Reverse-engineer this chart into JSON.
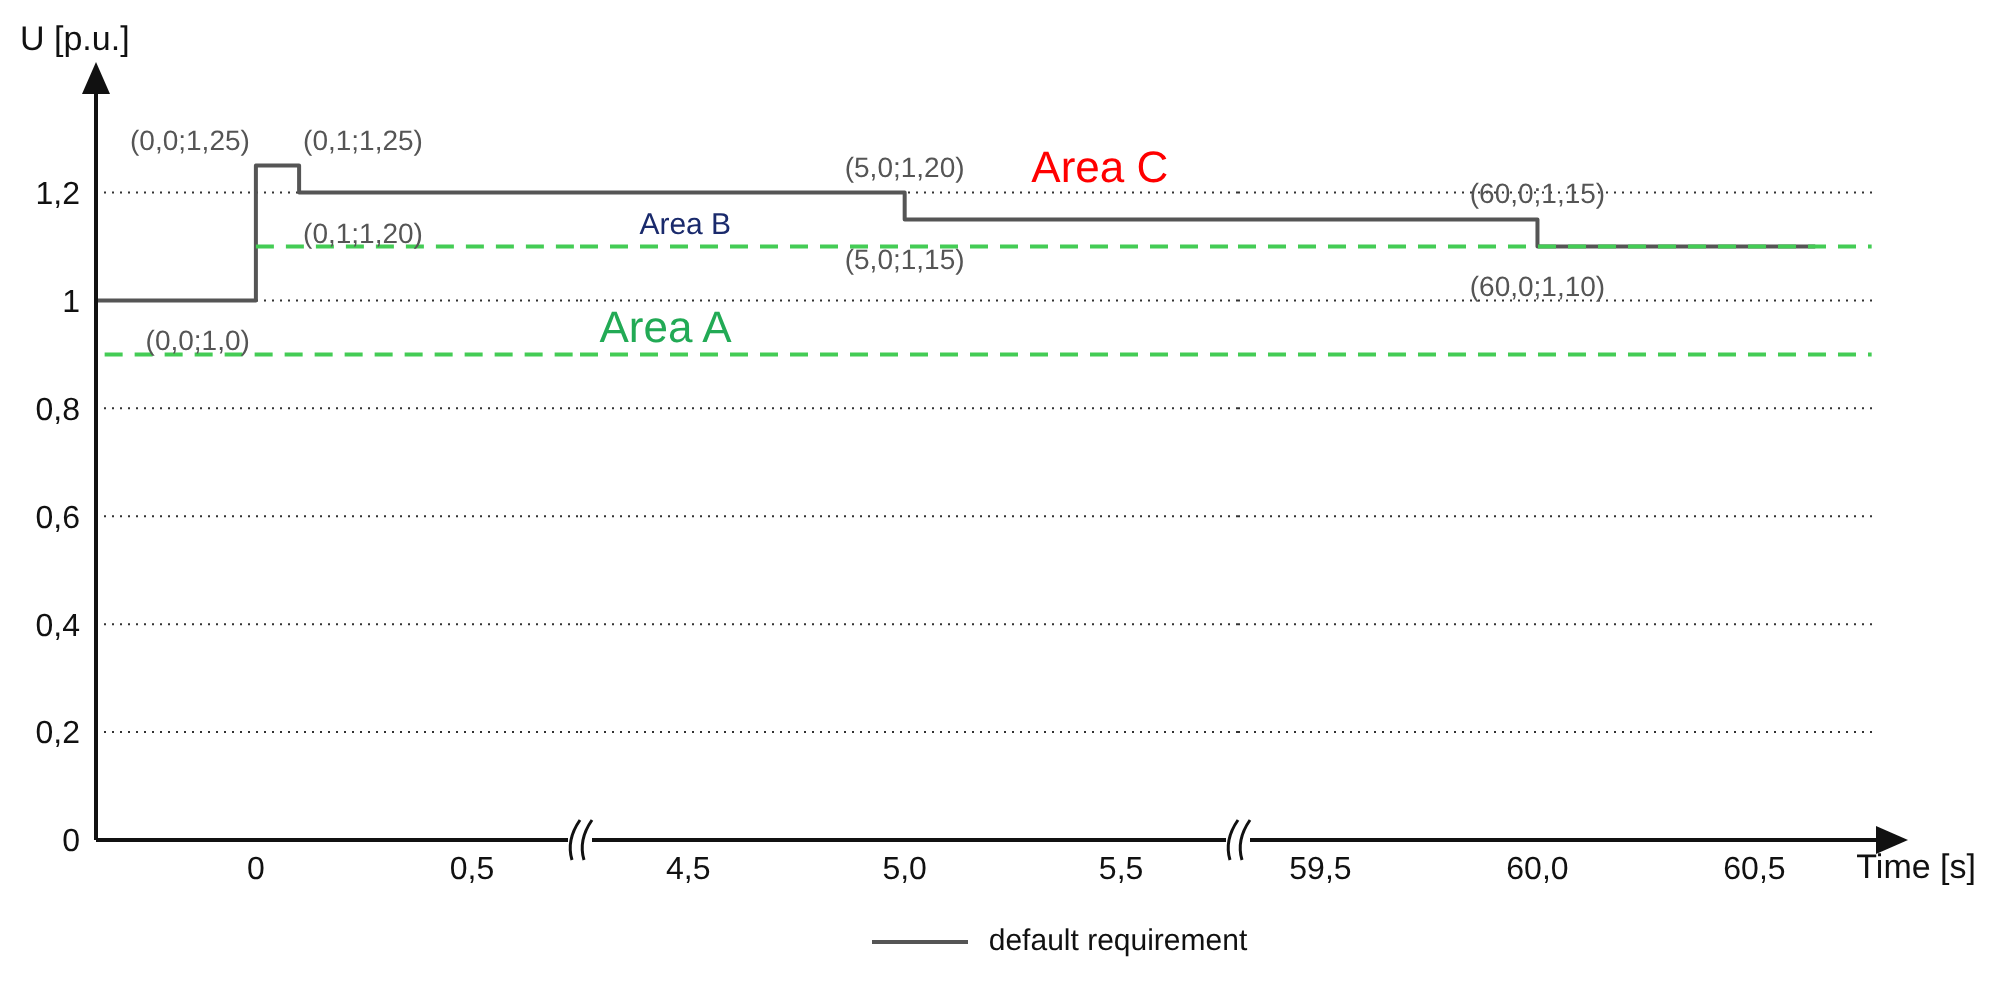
{
  "chart_data": [
    {
      "type": "step",
      "ylabel": "U [p.u.]",
      "xlim": [
        -0.37,
        0.75
      ],
      "xticks": [
        0,
        {
          "value": 0.5,
          "label": "0,5"
        }
      ],
      "ylim": [
        0,
        1.39
      ],
      "yticks": [
        0,
        {
          "value": 0.2,
          "label": "0,2"
        },
        {
          "value": 0.4,
          "label": "0,4"
        },
        {
          "value": 0.6,
          "label": "0,6"
        },
        {
          "value": 0.8,
          "label": "0,8"
        },
        1,
        {
          "value": 1.2,
          "label": "1,2"
        }
      ],
      "grid": "y",
      "legend": "bottom",
      "series": [
        {
          "name": "default requirement",
          "color": "#555555",
          "x": [
            -0.37,
            0,
            0.1,
            0.75
          ],
          "values": [
            1.0,
            1.25,
            1.2,
            1.2
          ]
        },
        {
          "color": "#44cc55",
          "line_style": "dashed",
          "x": [
            0,
            0.75
          ],
          "values": [
            1.1,
            1.1
          ]
        },
        {
          "color": "#44cc55",
          "line_style": "dashed",
          "x": [
            -0.35,
            0.75
          ],
          "values": [
            0.9,
            0.9
          ]
        }
      ],
      "annotations": [
        {
          "text": "(0,0;1,25)",
          "x": 0,
          "y": 1.25
        },
        {
          "text": "(0,1;1,25)",
          "x": 0.1,
          "y": 1.25
        },
        {
          "text": "(0,1;1,20)",
          "x": 0.1,
          "y": 1.2
        },
        {
          "text": "(0,0;1,0)",
          "x": 0,
          "y": 1.0
        }
      ]
    },
    {
      "type": "step",
      "xlim": [
        4.25,
        5.77
      ],
      "xticks": [
        {
          "value": 4.5,
          "label": "4,5"
        },
        {
          "value": 5.0,
          "label": "5,0"
        },
        {
          "value": 5.5,
          "label": "5,5"
        }
      ],
      "yticks": [
        0,
        0.2,
        0.4,
        0.6,
        0.8,
        1,
        1.2
      ],
      "grid": "y",
      "tick_labels": "x",
      "series": [
        {
          "color": "#555555",
          "x": [
            4.25,
            5.0,
            5.77
          ],
          "values": [
            1.2,
            1.15,
            1.15
          ]
        },
        {
          "color": "#44cc55",
          "line_style": "dashed",
          "x": [
            4.25,
            5.77
          ],
          "values": [
            1.1,
            1.1
          ]
        },
        {
          "color": "#44cc55",
          "line_style": "dashed",
          "x": [
            4.25,
            5.77
          ],
          "values": [
            0.9,
            0.9
          ]
        }
      ],
      "annotations": [
        {
          "text": "(5,0;1,20)",
          "x": 5.0,
          "y": 1.2
        },
        {
          "text": "(5,0;1,15)",
          "x": 5.0,
          "y": 1.15
        },
        "Area A",
        "Area B",
        "Area C"
      ]
    },
    {
      "type": "step",
      "xlabel": "Time [s]",
      "xlim": [
        59.31,
        60.78
      ],
      "xticks": [
        {
          "value": 59.5,
          "label": "59,5"
        },
        {
          "value": 60.0,
          "label": "60,0"
        },
        {
          "value": 60.5,
          "label": "60,5"
        }
      ],
      "yticks": [
        0,
        0.2,
        0.4,
        0.6,
        0.8,
        1,
        1.2
      ],
      "grid": "y",
      "tick_labels": "x",
      "series": [
        {
          "color": "#555555",
          "x": [
            59.31,
            60.0,
            60.64
          ],
          "values": [
            1.15,
            1.1,
            1.1
          ]
        },
        {
          "color": "#44cc55",
          "line_style": "dashed",
          "x": [
            59.31,
            60.77
          ],
          "values": [
            1.1,
            1.1
          ]
        },
        {
          "color": "#44cc55",
          "line_style": "dashed",
          "x": [
            59.31,
            60.77
          ],
          "values": [
            0.9,
            0.9
          ]
        }
      ],
      "annotations": [
        {
          "text": "(60,0;1,15)",
          "x": 60.0,
          "y": 1.15
        },
        {
          "text": "(60,0;1,10)",
          "x": 60.0,
          "y": 1.1
        }
      ]
    }
  ]
}
